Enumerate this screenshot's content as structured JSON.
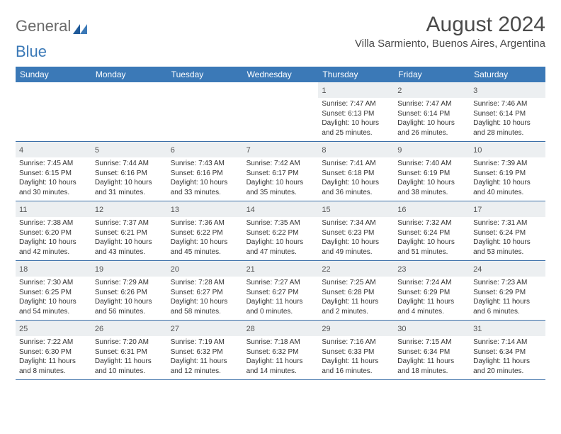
{
  "logo": {
    "text1": "General",
    "text2": "Blue"
  },
  "title": "August 2024",
  "location": "Villa Sarmiento, Buenos Aires, Argentina",
  "weekdays": [
    "Sunday",
    "Monday",
    "Tuesday",
    "Wednesday",
    "Thursday",
    "Friday",
    "Saturday"
  ],
  "colors": {
    "header_bg": "#3b79b7",
    "header_text": "#ffffff",
    "daynum_bg": "#eceff1",
    "text": "#333333",
    "rule": "#3b6fa8"
  },
  "weeks": [
    [
      null,
      null,
      null,
      null,
      {
        "n": "1",
        "sunrise": "7:47 AM",
        "sunset": "6:13 PM",
        "dl1": "Daylight: 10 hours",
        "dl2": "and 25 minutes."
      },
      {
        "n": "2",
        "sunrise": "7:47 AM",
        "sunset": "6:14 PM",
        "dl1": "Daylight: 10 hours",
        "dl2": "and 26 minutes."
      },
      {
        "n": "3",
        "sunrise": "7:46 AM",
        "sunset": "6:14 PM",
        "dl1": "Daylight: 10 hours",
        "dl2": "and 28 minutes."
      }
    ],
    [
      {
        "n": "4",
        "sunrise": "7:45 AM",
        "sunset": "6:15 PM",
        "dl1": "Daylight: 10 hours",
        "dl2": "and 30 minutes."
      },
      {
        "n": "5",
        "sunrise": "7:44 AM",
        "sunset": "6:16 PM",
        "dl1": "Daylight: 10 hours",
        "dl2": "and 31 minutes."
      },
      {
        "n": "6",
        "sunrise": "7:43 AM",
        "sunset": "6:16 PM",
        "dl1": "Daylight: 10 hours",
        "dl2": "and 33 minutes."
      },
      {
        "n": "7",
        "sunrise": "7:42 AM",
        "sunset": "6:17 PM",
        "dl1": "Daylight: 10 hours",
        "dl2": "and 35 minutes."
      },
      {
        "n": "8",
        "sunrise": "7:41 AM",
        "sunset": "6:18 PM",
        "dl1": "Daylight: 10 hours",
        "dl2": "and 36 minutes."
      },
      {
        "n": "9",
        "sunrise": "7:40 AM",
        "sunset": "6:19 PM",
        "dl1": "Daylight: 10 hours",
        "dl2": "and 38 minutes."
      },
      {
        "n": "10",
        "sunrise": "7:39 AM",
        "sunset": "6:19 PM",
        "dl1": "Daylight: 10 hours",
        "dl2": "and 40 minutes."
      }
    ],
    [
      {
        "n": "11",
        "sunrise": "7:38 AM",
        "sunset": "6:20 PM",
        "dl1": "Daylight: 10 hours",
        "dl2": "and 42 minutes."
      },
      {
        "n": "12",
        "sunrise": "7:37 AM",
        "sunset": "6:21 PM",
        "dl1": "Daylight: 10 hours",
        "dl2": "and 43 minutes."
      },
      {
        "n": "13",
        "sunrise": "7:36 AM",
        "sunset": "6:22 PM",
        "dl1": "Daylight: 10 hours",
        "dl2": "and 45 minutes."
      },
      {
        "n": "14",
        "sunrise": "7:35 AM",
        "sunset": "6:22 PM",
        "dl1": "Daylight: 10 hours",
        "dl2": "and 47 minutes."
      },
      {
        "n": "15",
        "sunrise": "7:34 AM",
        "sunset": "6:23 PM",
        "dl1": "Daylight: 10 hours",
        "dl2": "and 49 minutes."
      },
      {
        "n": "16",
        "sunrise": "7:32 AM",
        "sunset": "6:24 PM",
        "dl1": "Daylight: 10 hours",
        "dl2": "and 51 minutes."
      },
      {
        "n": "17",
        "sunrise": "7:31 AM",
        "sunset": "6:24 PM",
        "dl1": "Daylight: 10 hours",
        "dl2": "and 53 minutes."
      }
    ],
    [
      {
        "n": "18",
        "sunrise": "7:30 AM",
        "sunset": "6:25 PM",
        "dl1": "Daylight: 10 hours",
        "dl2": "and 54 minutes."
      },
      {
        "n": "19",
        "sunrise": "7:29 AM",
        "sunset": "6:26 PM",
        "dl1": "Daylight: 10 hours",
        "dl2": "and 56 minutes."
      },
      {
        "n": "20",
        "sunrise": "7:28 AM",
        "sunset": "6:27 PM",
        "dl1": "Daylight: 10 hours",
        "dl2": "and 58 minutes."
      },
      {
        "n": "21",
        "sunrise": "7:27 AM",
        "sunset": "6:27 PM",
        "dl1": "Daylight: 11 hours",
        "dl2": "and 0 minutes."
      },
      {
        "n": "22",
        "sunrise": "7:25 AM",
        "sunset": "6:28 PM",
        "dl1": "Daylight: 11 hours",
        "dl2": "and 2 minutes."
      },
      {
        "n": "23",
        "sunrise": "7:24 AM",
        "sunset": "6:29 PM",
        "dl1": "Daylight: 11 hours",
        "dl2": "and 4 minutes."
      },
      {
        "n": "24",
        "sunrise": "7:23 AM",
        "sunset": "6:29 PM",
        "dl1": "Daylight: 11 hours",
        "dl2": "and 6 minutes."
      }
    ],
    [
      {
        "n": "25",
        "sunrise": "7:22 AM",
        "sunset": "6:30 PM",
        "dl1": "Daylight: 11 hours",
        "dl2": "and 8 minutes."
      },
      {
        "n": "26",
        "sunrise": "7:20 AM",
        "sunset": "6:31 PM",
        "dl1": "Daylight: 11 hours",
        "dl2": "and 10 minutes."
      },
      {
        "n": "27",
        "sunrise": "7:19 AM",
        "sunset": "6:32 PM",
        "dl1": "Daylight: 11 hours",
        "dl2": "and 12 minutes."
      },
      {
        "n": "28",
        "sunrise": "7:18 AM",
        "sunset": "6:32 PM",
        "dl1": "Daylight: 11 hours",
        "dl2": "and 14 minutes."
      },
      {
        "n": "29",
        "sunrise": "7:16 AM",
        "sunset": "6:33 PM",
        "dl1": "Daylight: 11 hours",
        "dl2": "and 16 minutes."
      },
      {
        "n": "30",
        "sunrise": "7:15 AM",
        "sunset": "6:34 PM",
        "dl1": "Daylight: 11 hours",
        "dl2": "and 18 minutes."
      },
      {
        "n": "31",
        "sunrise": "7:14 AM",
        "sunset": "6:34 PM",
        "dl1": "Daylight: 11 hours",
        "dl2": "and 20 minutes."
      }
    ]
  ]
}
